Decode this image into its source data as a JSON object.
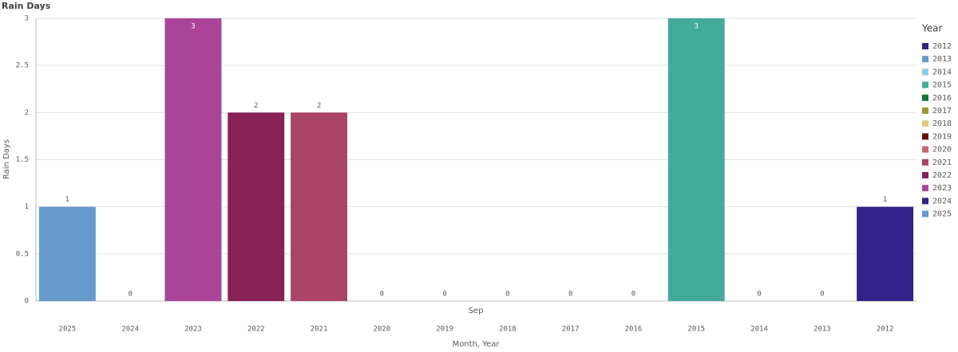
{
  "chart_data": {
    "type": "bar",
    "title": "Rain Days",
    "y_label": "Rain Days",
    "x_label": "Month, Year",
    "group_label": "Sep",
    "categories": [
      "2025",
      "2024",
      "2023",
      "2022",
      "2021",
      "2020",
      "2019",
      "2018",
      "2017",
      "2016",
      "2015",
      "2014",
      "2013",
      "2012"
    ],
    "values": [
      1,
      0,
      3,
      2,
      2,
      0,
      0,
      0,
      0,
      0,
      3,
      0,
      0,
      1
    ],
    "ylim": [
      0,
      3
    ],
    "yticks": [
      0,
      0.5,
      1,
      1.5,
      2,
      2.5,
      3
    ],
    "grid": true,
    "legend": {
      "title": "Year",
      "position": "right",
      "items": [
        {
          "name": "2012",
          "color": "#332288"
        },
        {
          "name": "2013",
          "color": "#6699cc"
        },
        {
          "name": "2014",
          "color": "#88ccee"
        },
        {
          "name": "2015",
          "color": "#44aa99"
        },
        {
          "name": "2016",
          "color": "#117733"
        },
        {
          "name": "2017",
          "color": "#999933"
        },
        {
          "name": "2018",
          "color": "#ddcc77"
        },
        {
          "name": "2019",
          "color": "#661100"
        },
        {
          "name": "2020",
          "color": "#cc6677"
        },
        {
          "name": "2021",
          "color": "#aa4466"
        },
        {
          "name": "2022",
          "color": "#882255"
        },
        {
          "name": "2023",
          "color": "#aa4499"
        },
        {
          "name": "2024",
          "color": "#332288"
        },
        {
          "name": "2025",
          "color": "#6699cc"
        }
      ]
    }
  }
}
